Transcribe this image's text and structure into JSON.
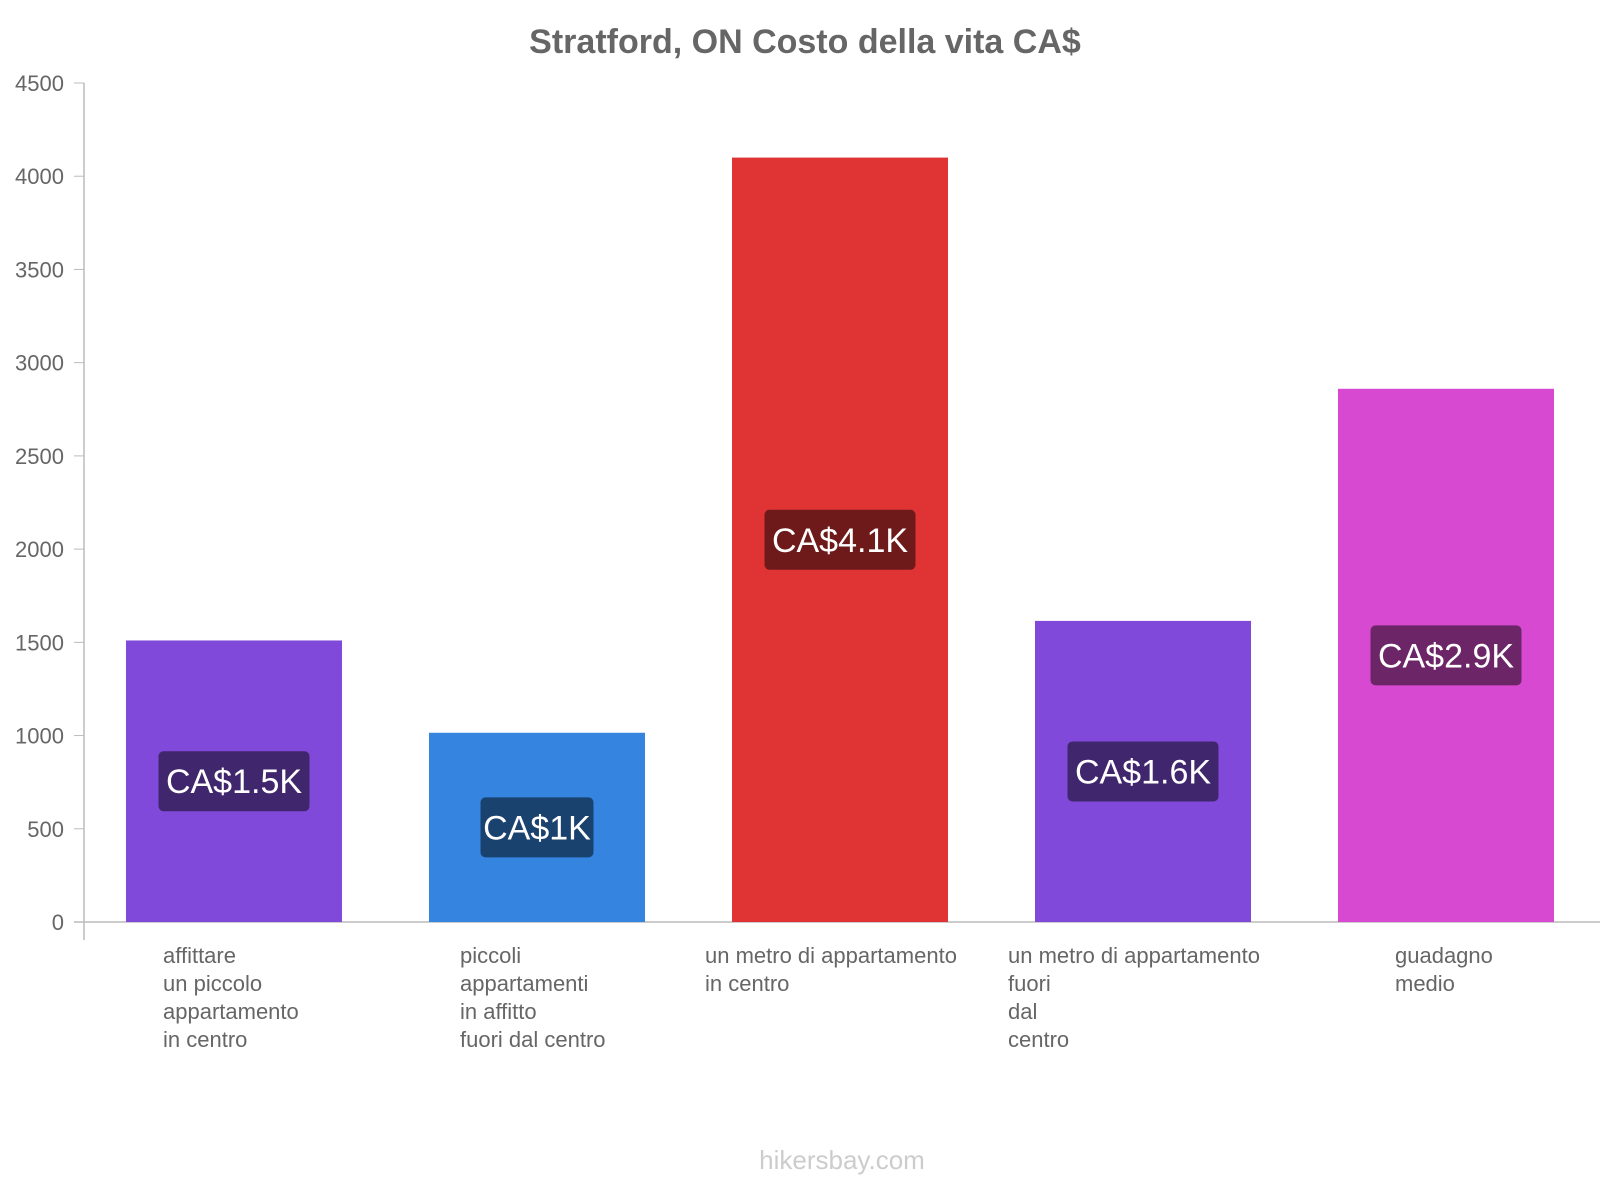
{
  "chart_data": {
    "type": "bar",
    "title": "Stratford, ON Costo della vita CA$",
    "xlabel": "",
    "ylabel": "",
    "ylim": [
      0,
      4500
    ],
    "yticks": [
      0,
      500,
      1000,
      1500,
      2000,
      2500,
      3000,
      3500,
      4000,
      4500
    ],
    "categories": [
      [
        "affittare",
        "un piccolo",
        "appartamento",
        "in centro"
      ],
      [
        "piccoli",
        "appartamenti",
        "in affitto",
        "fuori dal centro"
      ],
      [
        "un metro di appartamento",
        "in centro"
      ],
      [
        "un metro di appartamento",
        "fuori",
        "dal",
        "centro"
      ],
      [
        "guadagno",
        "medio"
      ]
    ],
    "values": [
      1510,
      1015,
      4100,
      1615,
      2860
    ],
    "value_labels": [
      "CA$1.5K",
      "CA$1K",
      "CA$4.1K",
      "CA$1.6K",
      "CA$2.9K"
    ],
    "colors": [
      "#8149d9",
      "#3584e0",
      "#e03434",
      "#8149d9",
      "#d849d2"
    ],
    "label_bg_colors": [
      "#40266c",
      "#1a426f",
      "#6f1a1a",
      "#40266c",
      "#6c2668"
    ],
    "grid": false,
    "legend": "none"
  },
  "source": "hikersbay.com"
}
